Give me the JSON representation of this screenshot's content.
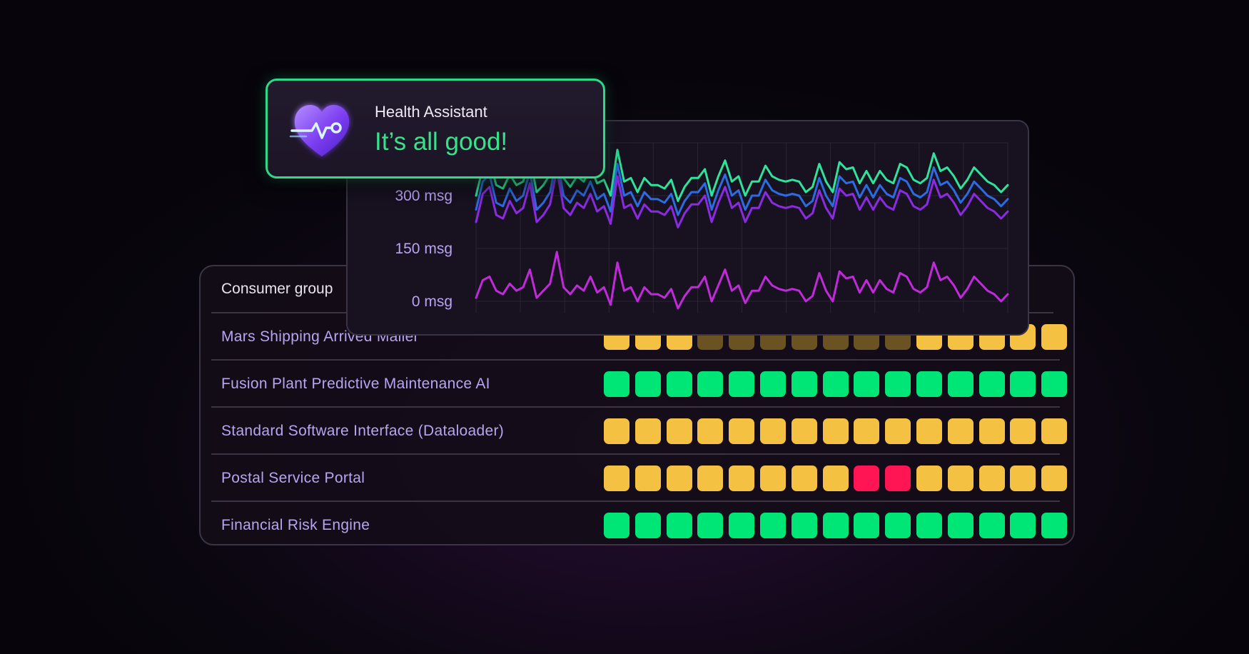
{
  "health_assistant": {
    "title": "Health Assistant",
    "status": "It’s all good!",
    "icon": "heartbeat-heart-icon",
    "accent": "#2fd989"
  },
  "table": {
    "header": "Consumer group",
    "status_colors": {
      "ok": "#00e676",
      "warn": "#f5c142",
      "warn-dim": "#6b5222",
      "error": "#ff1554"
    },
    "rows": [
      {
        "label": "Mars Shipping Arrived Mailer",
        "cells": [
          "warn",
          "warn",
          "warn",
          "warn-dim",
          "warn-dim",
          "warn-dim",
          "warn-dim",
          "warn-dim",
          "warn-dim",
          "warn-dim",
          "warn",
          "warn",
          "warn",
          "warn",
          "warn"
        ]
      },
      {
        "label": "Fusion Plant Predictive Maintenance AI",
        "cells": [
          "ok",
          "ok",
          "ok",
          "ok",
          "ok",
          "ok",
          "ok",
          "ok",
          "ok",
          "ok",
          "ok",
          "ok",
          "ok",
          "ok",
          "ok"
        ]
      },
      {
        "label": "Standard Software Interface (Dataloader)",
        "cells": [
          "warn",
          "warn",
          "warn",
          "warn",
          "warn",
          "warn",
          "warn",
          "warn",
          "warn",
          "warn",
          "warn",
          "warn",
          "warn",
          "warn",
          "warn"
        ]
      },
      {
        "label": "Postal Service Portal",
        "cells": [
          "warn",
          "warn",
          "warn",
          "warn",
          "warn",
          "warn",
          "warn",
          "warn",
          "error",
          "error",
          "warn",
          "warn",
          "warn",
          "warn",
          "warn"
        ]
      },
      {
        "label": "Financial Risk Engine",
        "cells": [
          "ok",
          "ok",
          "ok",
          "ok",
          "ok",
          "ok",
          "ok",
          "ok",
          "ok",
          "ok",
          "ok",
          "ok",
          "ok",
          "ok",
          "ok"
        ]
      }
    ]
  },
  "chart_data": {
    "type": "line",
    "y_tick_labels": [
      "0 msg",
      "150 msg",
      "300 msg"
    ],
    "y_unit": "msg",
    "ylim": [
      0,
      450
    ],
    "grid": true,
    "series": [
      {
        "color": "#2fe39a",
        "values": [
          300,
          380,
          400,
          330,
          320,
          360,
          330,
          340,
          410,
          310,
          330,
          360,
          450,
          350,
          325,
          355,
          340,
          380,
          335,
          345,
          300,
          430,
          340,
          350,
          310,
          350,
          330,
          330,
          320,
          345,
          285,
          325,
          350,
          350,
          375,
          300,
          355,
          400,
          340,
          355,
          300,
          340,
          340,
          385,
          355,
          345,
          340,
          345,
          340,
          310,
          325,
          390,
          340,
          310,
          395,
          375,
          380,
          335,
          370,
          335,
          370,
          345,
          335,
          390,
          380,
          345,
          335,
          350,
          420,
          370,
          380,
          355,
          320,
          345,
          380,
          360,
          340,
          330,
          310,
          330
        ]
      },
      {
        "color": "#2d6be0",
        "values": [
          260,
          340,
          360,
          280,
          270,
          320,
          285,
          300,
          370,
          260,
          280,
          310,
          410,
          300,
          280,
          315,
          300,
          340,
          290,
          305,
          255,
          390,
          300,
          310,
          270,
          310,
          290,
          290,
          280,
          305,
          245,
          285,
          310,
          310,
          335,
          260,
          315,
          360,
          300,
          315,
          260,
          300,
          300,
          345,
          315,
          305,
          300,
          305,
          300,
          270,
          285,
          350,
          300,
          270,
          355,
          335,
          340,
          295,
          330,
          295,
          330,
          305,
          295,
          350,
          340,
          305,
          295,
          310,
          380,
          330,
          340,
          315,
          280,
          305,
          340,
          320,
          300,
          290,
          270,
          290
        ]
      },
      {
        "color": "#8a2be2",
        "values": [
          225,
          305,
          325,
          245,
          235,
          285,
          250,
          265,
          335,
          225,
          245,
          275,
          375,
          265,
          245,
          280,
          265,
          305,
          255,
          270,
          220,
          355,
          265,
          275,
          235,
          275,
          255,
          255,
          245,
          270,
          210,
          250,
          275,
          275,
          300,
          225,
          280,
          325,
          265,
          280,
          225,
          265,
          265,
          310,
          280,
          270,
          265,
          270,
          265,
          235,
          250,
          315,
          265,
          235,
          320,
          300,
          305,
          260,
          295,
          260,
          295,
          270,
          260,
          315,
          305,
          270,
          260,
          275,
          345,
          295,
          305,
          280,
          245,
          270,
          305,
          285,
          265,
          255,
          235,
          255
        ]
      },
      {
        "color": "#c02ad9",
        "values": [
          10,
          60,
          70,
          30,
          20,
          50,
          30,
          40,
          90,
          10,
          30,
          50,
          140,
          40,
          20,
          45,
          30,
          70,
          25,
          40,
          -10,
          110,
          30,
          40,
          0,
          40,
          20,
          20,
          10,
          35,
          -20,
          15,
          40,
          40,
          70,
          0,
          45,
          90,
          30,
          45,
          -5,
          30,
          30,
          70,
          45,
          35,
          30,
          35,
          30,
          0,
          15,
          80,
          30,
          0,
          85,
          65,
          70,
          25,
          60,
          25,
          60,
          35,
          25,
          80,
          70,
          35,
          25,
          40,
          110,
          60,
          70,
          45,
          10,
          35,
          70,
          50,
          30,
          20,
          0,
          20
        ]
      }
    ]
  }
}
